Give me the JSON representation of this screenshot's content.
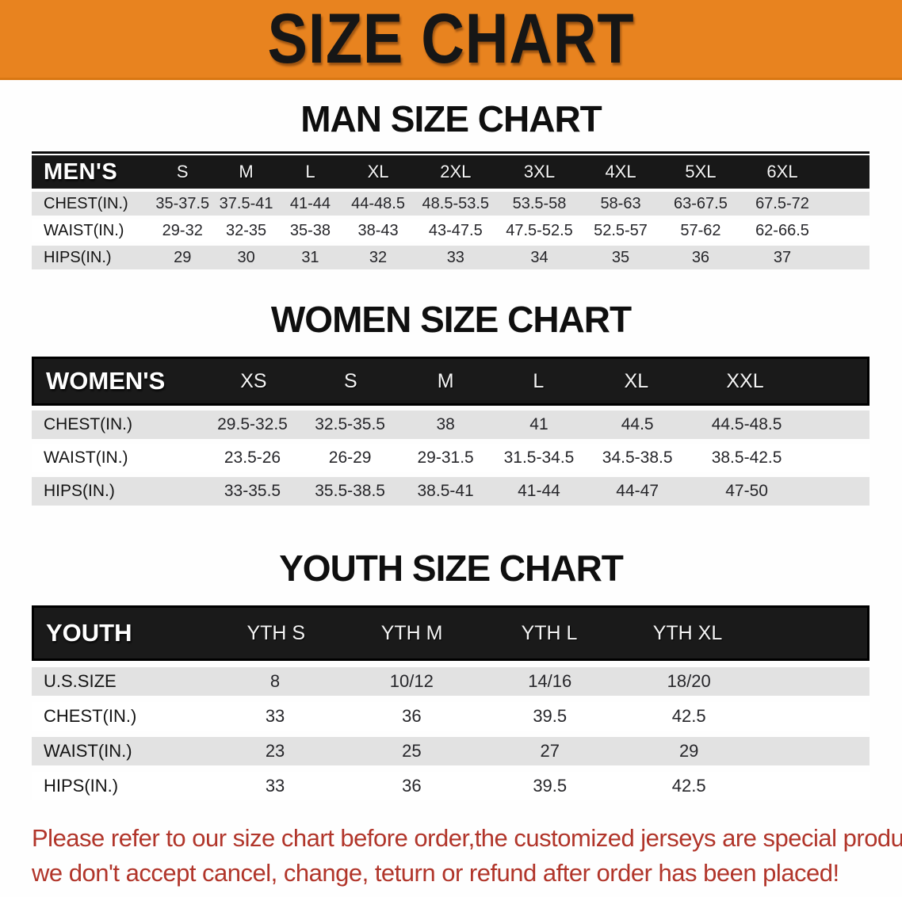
{
  "banner": {
    "title": "SIZE CHART",
    "background_color": "#E8831F",
    "text_color": "#161616"
  },
  "sections": [
    {
      "id": "men",
      "heading": "MAN SIZE CHART",
      "label": "MEN'S",
      "columns": [
        "S",
        "M",
        "L",
        "XL",
        "2XL",
        "3XL",
        "4XL",
        "5XL",
        "6XL"
      ],
      "rows": [
        {
          "label": "CHEST(IN.)",
          "values": [
            "35-37.5",
            "37.5-41",
            "41-44",
            "44-48.5",
            "48.5-53.5",
            "53.5-58",
            "58-63",
            "63-67.5",
            "67.5-72"
          ]
        },
        {
          "label": "WAIST(IN.)",
          "values": [
            "29-32",
            "32-35",
            "35-38",
            "38-43",
            "43-47.5",
            "47.5-52.5",
            "52.5-57",
            "57-62",
            "62-66.5"
          ]
        },
        {
          "label": "HIPS(IN.)",
          "values": [
            "29",
            "30",
            "31",
            "32",
            "33",
            "34",
            "35",
            "36",
            "37"
          ]
        }
      ]
    },
    {
      "id": "women",
      "heading": "WOMEN SIZE CHART",
      "label": "WOMEN'S",
      "columns": [
        "XS",
        "S",
        "M",
        "L",
        "XL",
        "XXL"
      ],
      "rows": [
        {
          "label": "CHEST(IN.)",
          "values": [
            "29.5-32.5",
            "32.5-35.5",
            "38",
            "41",
            "44.5",
            "44.5-48.5"
          ]
        },
        {
          "label": "WAIST(IN.)",
          "values": [
            "23.5-26",
            "26-29",
            "29-31.5",
            "31.5-34.5",
            "34.5-38.5",
            "38.5-42.5"
          ]
        },
        {
          "label": "HIPS(IN.)",
          "values": [
            "33-35.5",
            "35.5-38.5",
            "38.5-41",
            "41-44",
            "44-47",
            "47-50"
          ]
        }
      ]
    },
    {
      "id": "youth",
      "heading": "YOUTH SIZE CHART",
      "label": "YOUTH",
      "columns": [
        "YTH S",
        "YTH M",
        "YTH L",
        "YTH XL"
      ],
      "rows": [
        {
          "label": "U.S.SIZE",
          "values": [
            "8",
            "10/12",
            "14/16",
            "18/20"
          ]
        },
        {
          "label": "CHEST(IN.)",
          "values": [
            "33",
            "36",
            "39.5",
            "42.5"
          ]
        },
        {
          "label": "WAIST(IN.)",
          "values": [
            "23",
            "25",
            "27",
            "29"
          ]
        },
        {
          "label": "HIPS(IN.)",
          "values": [
            "33",
            "36",
            "39.5",
            "42.5"
          ]
        }
      ]
    }
  ],
  "footer": {
    "line1": "Please refer to our size chart before order,the customized jerseys are special products,",
    "line2": "we don't accept cancel, change, teturn or refund after order has been placed!",
    "text_color": "#B1352A"
  },
  "colors": {
    "header_bar": "#181818",
    "row_shade": "#E2E2E2",
    "row_plain": "#FFFFFF"
  }
}
